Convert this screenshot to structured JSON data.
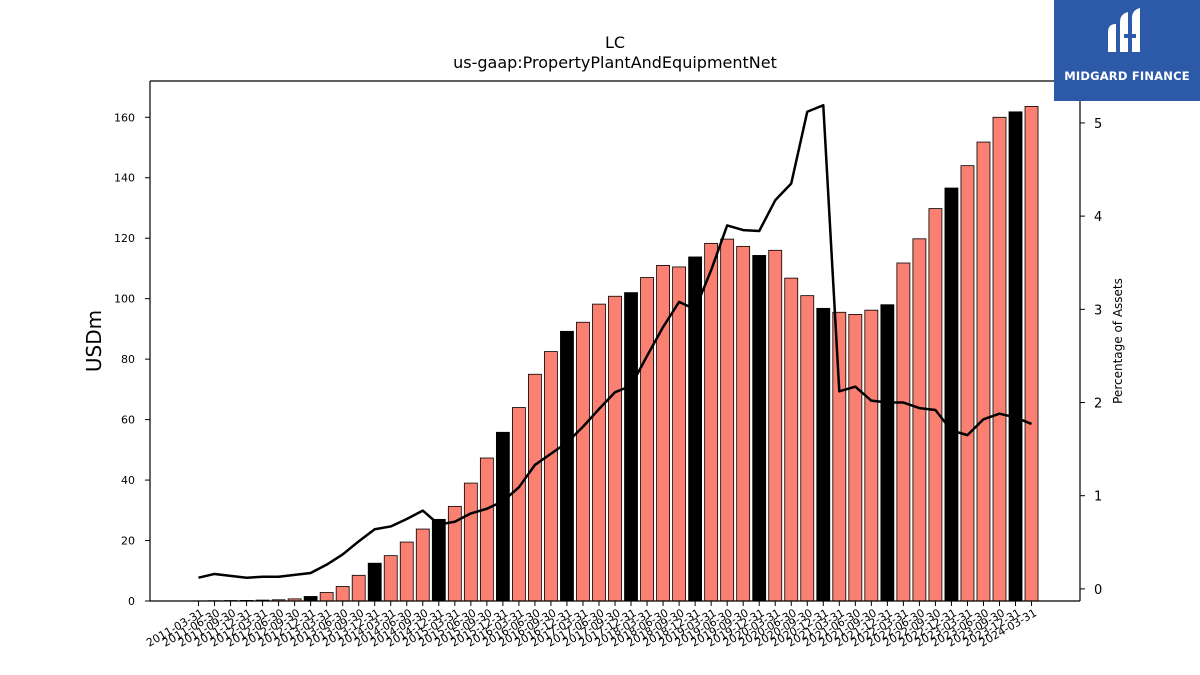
{
  "chart_data": {
    "type": "bar",
    "title": "LC",
    "subtitle": "us-gaap:PropertyPlantAndEquipmentNet",
    "ylabel": "USDm",
    "y2label": "Percentage of Assets",
    "ylim": [
      0,
      172
    ],
    "y2lim": [
      -0.13,
      5.45
    ],
    "yticks": [
      0,
      20,
      40,
      60,
      80,
      100,
      120,
      140,
      160
    ],
    "y2ticks": [
      0,
      1,
      2,
      3,
      4,
      5
    ],
    "grid": false,
    "bar_colors": {
      "quarter": "#fa8072",
      "year_end": "#000000",
      "edge": "#000000"
    },
    "line_color": "#000000",
    "categories": [
      "2011-03-31",
      "2011-06-30",
      "2011-09-30",
      "2011-12-31",
      "2012-03-31",
      "2012-06-30",
      "2012-09-30",
      "2012-12-31",
      "2013-03-31",
      "2013-06-30",
      "2013-09-30",
      "2013-12-31",
      "2014-03-31",
      "2014-06-30",
      "2014-09-30",
      "2014-12-31",
      "2015-03-31",
      "2015-06-30",
      "2015-09-30",
      "2015-12-31",
      "2016-03-31",
      "2016-06-30",
      "2016-09-30",
      "2016-12-31",
      "2017-03-31",
      "2017-06-30",
      "2017-09-30",
      "2017-12-31",
      "2018-03-31",
      "2018-06-30",
      "2018-09-30",
      "2018-12-31",
      "2019-03-31",
      "2019-06-30",
      "2019-09-30",
      "2019-12-31",
      "2020-03-31",
      "2020-06-30",
      "2020-09-30",
      "2020-12-31",
      "2021-03-31",
      "2021-06-30",
      "2021-09-30",
      "2021-12-31",
      "2022-03-31",
      "2022-06-30",
      "2022-09-30",
      "2022-12-31",
      "2023-03-31",
      "2023-06-30",
      "2023-09-30",
      "2023-12-31",
      "2024-03-31"
    ],
    "series": [
      {
        "type": "bar",
        "values": [
          0.05,
          0.1,
          0.15,
          0.2,
          0.3,
          0.4,
          0.7,
          1.5,
          2.8,
          4.8,
          8.5,
          12.5,
          15.0,
          19.5,
          23.8,
          27.0,
          31.3,
          39.0,
          47.3,
          55.8,
          64.0,
          75.0,
          82.5,
          89.2,
          92.2,
          98.2,
          100.8,
          102.0,
          107.0,
          111.0,
          110.5,
          113.8,
          118.3,
          119.7,
          117.3,
          114.3,
          116.0,
          106.8,
          101.0,
          96.8,
          95.5,
          94.8,
          96.2,
          98.0,
          111.8,
          119.8,
          129.8,
          136.6,
          144.0,
          151.8,
          160.0,
          161.8,
          163.6
        ]
      },
      {
        "type": "line",
        "axis": "right",
        "values": [
          0.12,
          0.16,
          0.14,
          0.12,
          0.13,
          0.13,
          0.15,
          0.17,
          0.26,
          0.37,
          0.51,
          0.64,
          0.67,
          0.75,
          0.84,
          0.69,
          0.72,
          0.81,
          0.86,
          0.94,
          1.09,
          1.33,
          1.45,
          1.57,
          1.74,
          1.93,
          2.11,
          2.18,
          2.5,
          2.81,
          3.08,
          3.0,
          3.42,
          3.9,
          3.85,
          3.84,
          4.17,
          4.35,
          5.12,
          5.19,
          2.12,
          2.17,
          2.02,
          2.0,
          2.0,
          1.94,
          1.92,
          1.7,
          1.65,
          1.82,
          1.88,
          1.84,
          1.77
        ]
      }
    ]
  },
  "logo": {
    "text": "MIDGARD FINANCE",
    "background": "#2d5aa8"
  }
}
